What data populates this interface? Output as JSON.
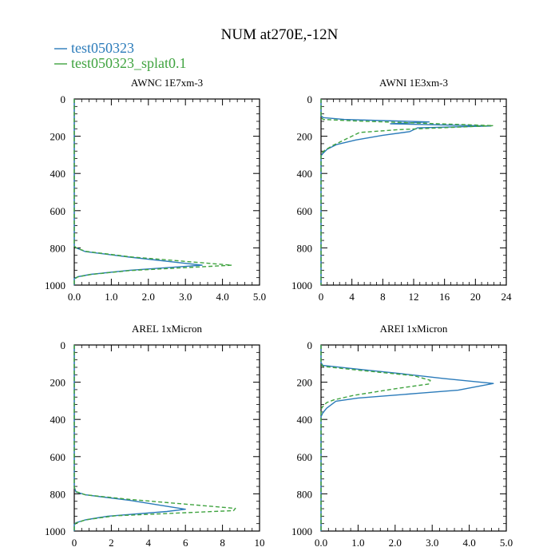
{
  "figure": {
    "title": "NUM at270E,-12N"
  },
  "legend": [
    {
      "label": "test050323",
      "color": "#2b7bba",
      "dash": "solid"
    },
    {
      "label": "test050323_splat0.1",
      "color": "#3fa33f",
      "dash": "dashed"
    }
  ],
  "chart_data": [
    {
      "type": "line",
      "title": "AWNC  1E7xm-3",
      "xlim": [
        0,
        5
      ],
      "ylim": [
        1000,
        0
      ],
      "x_ticks": [
        "0.0",
        "1.0",
        "2.0",
        "3.0",
        "4.0",
        "5.0"
      ],
      "x_tick_values": [
        0,
        1,
        2,
        3,
        4,
        5
      ],
      "y_ticks": [
        "0",
        "200",
        "400",
        "600",
        "800",
        "1000"
      ],
      "y_tick_values": [
        0,
        200,
        400,
        600,
        800,
        1000
      ],
      "series": [
        {
          "name": "test050323",
          "points": [
            [
              0,
              0
            ],
            [
              0,
              790
            ],
            [
              0.05,
              800
            ],
            [
              0.3,
              820
            ],
            [
              1.5,
              850
            ],
            [
              3.45,
              893
            ],
            [
              1.5,
              920
            ],
            [
              0.45,
              942
            ],
            [
              0.1,
              955
            ],
            [
              0,
              965
            ],
            [
              0,
              1000
            ]
          ]
        },
        {
          "name": "test050323_splat0.1",
          "points": [
            [
              0,
              0
            ],
            [
              0,
              790
            ],
            [
              0.05,
              800
            ],
            [
              0.3,
              818
            ],
            [
              1.5,
              848
            ],
            [
              4.25,
              893
            ],
            [
              1.5,
              922
            ],
            [
              0.45,
              943
            ],
            [
              0.1,
              956
            ],
            [
              0,
              968
            ],
            [
              0,
              1000
            ]
          ]
        }
      ]
    },
    {
      "type": "line",
      "title": "AWNI  1E3xm-3",
      "xlim": [
        0,
        24
      ],
      "ylim": [
        1000,
        0
      ],
      "x_ticks": [
        "0",
        "4",
        "8",
        "12",
        "16",
        "20",
        "24"
      ],
      "x_tick_values": [
        0,
        4,
        8,
        12,
        16,
        20,
        24
      ],
      "y_ticks": [
        "0",
        "200",
        "400",
        "600",
        "800",
        "1000"
      ],
      "y_tick_values": [
        0,
        200,
        400,
        600,
        800,
        1000
      ],
      "series": [
        {
          "name": "test050323",
          "points": [
            [
              0,
              0
            ],
            [
              0,
              90
            ],
            [
              0.3,
              100
            ],
            [
              3,
              110
            ],
            [
              14,
              123
            ],
            [
              9,
              133
            ],
            [
              22,
              145
            ],
            [
              12.5,
              155
            ],
            [
              11.5,
              175
            ],
            [
              8,
              195
            ],
            [
              4.5,
              220
            ],
            [
              2,
              245
            ],
            [
              0.8,
              270
            ],
            [
              0.3,
              290
            ],
            [
              0,
              305
            ],
            [
              0,
              1000
            ]
          ]
        },
        {
          "name": "test050323_splat0.1",
          "points": [
            [
              0,
              0
            ],
            [
              0,
              100
            ],
            [
              0.3,
              110
            ],
            [
              4,
              117
            ],
            [
              22.3,
              143
            ],
            [
              10,
              165
            ],
            [
              5,
              180
            ],
            [
              3,
              220
            ],
            [
              1.5,
              250
            ],
            [
              0.5,
              275
            ],
            [
              0.1,
              290
            ],
            [
              0,
              300
            ],
            [
              0,
              1000
            ]
          ]
        }
      ]
    },
    {
      "type": "line",
      "title": "AREL  1xMicron",
      "xlim": [
        0,
        10
      ],
      "ylim": [
        1000,
        0
      ],
      "x_ticks": [
        "0",
        "2",
        "4",
        "6",
        "8",
        "10"
      ],
      "x_tick_values": [
        0,
        2,
        4,
        6,
        8,
        10
      ],
      "y_ticks": [
        "0",
        "200",
        "400",
        "600",
        "800",
        "1000"
      ],
      "y_tick_values": [
        0,
        200,
        400,
        600,
        800,
        1000
      ],
      "series": [
        {
          "name": "test050323",
          "points": [
            [
              0,
              0
            ],
            [
              0,
              765
            ],
            [
              0.1,
              790
            ],
            [
              0.6,
              805
            ],
            [
              3,
              835
            ],
            [
              6,
              883
            ],
            [
              5,
              895
            ],
            [
              1.8,
              920
            ],
            [
              0.6,
              940
            ],
            [
              0.1,
              955
            ],
            [
              0,
              965
            ],
            [
              0,
              1000
            ]
          ]
        },
        {
          "name": "test050323_splat0.1",
          "points": [
            [
              0,
              0
            ],
            [
              0,
              765
            ],
            [
              0.1,
              788
            ],
            [
              0.6,
              805
            ],
            [
              3,
              830
            ],
            [
              8.7,
              878
            ],
            [
              8.6,
              890
            ],
            [
              2.2,
              918
            ],
            [
              0.6,
              940
            ],
            [
              0.1,
              957
            ],
            [
              0,
              968
            ],
            [
              0,
              1000
            ]
          ]
        }
      ]
    },
    {
      "type": "line",
      "title": "AREI  1xMicron",
      "xlim": [
        0,
        5
      ],
      "ylim": [
        1000,
        0
      ],
      "x_ticks": [
        "0.0",
        "1.0",
        "2.0",
        "3.0",
        "4.0",
        "5.0"
      ],
      "x_tick_values": [
        0,
        1,
        2,
        3,
        4,
        5
      ],
      "y_ticks": [
        "0",
        "200",
        "400",
        "600",
        "800",
        "1000"
      ],
      "y_tick_values": [
        0,
        200,
        400,
        600,
        800,
        1000
      ],
      "series": [
        {
          "name": "test050323",
          "points": [
            [
              0,
              0
            ],
            [
              0,
              95
            ],
            [
              0.05,
              110
            ],
            [
              1,
              130
            ],
            [
              2.2,
              155
            ],
            [
              3.3,
              180
            ],
            [
              4.65,
              207
            ],
            [
              3.7,
              243
            ],
            [
              2.6,
              260
            ],
            [
              1,
              285
            ],
            [
              0.4,
              302
            ],
            [
              0.15,
              340
            ],
            [
              0.05,
              365
            ],
            [
              0,
              385
            ],
            [
              0,
              1000
            ]
          ]
        },
        {
          "name": "test050323_splat0.1",
          "points": [
            [
              0,
              0
            ],
            [
              0,
              100
            ],
            [
              0.05,
              115
            ],
            [
              1,
              135
            ],
            [
              2.5,
              165
            ],
            [
              2.95,
              190
            ],
            [
              2.9,
              210
            ],
            [
              2,
              235
            ],
            [
              0.9,
              270
            ],
            [
              0.35,
              295
            ],
            [
              0.15,
              310
            ],
            [
              0.05,
              330
            ],
            [
              0,
              345
            ],
            [
              0,
              1000
            ]
          ]
        }
      ]
    }
  ]
}
